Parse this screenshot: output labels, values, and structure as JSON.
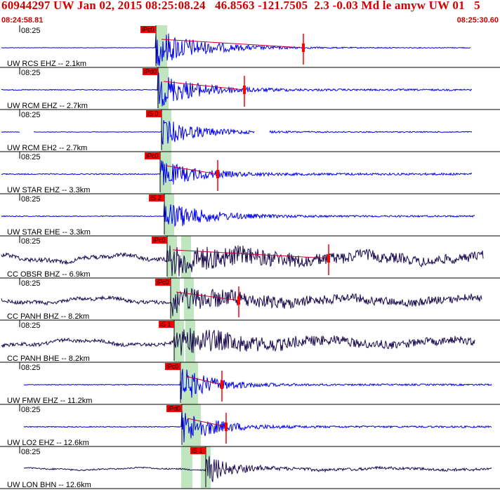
{
  "header": {
    "title": "60944297 UW Jan 02, 2015 08:25:08.24   46.8563 -121.7505  2.3 -0.03 Md le amyw UW 01   5",
    "start_time": "08:24:58.81",
    "end_time": "08:25:30.60"
  },
  "minute_label": "08:25",
  "colors": {
    "header": "#d00000",
    "blue": "#0000ee",
    "dark": "#1a0a50",
    "pick": "#ff0000",
    "window": "#bfe6bf",
    "coda": "#c0002a"
  },
  "traces": [
    {
      "label": "UW RCS EHZ -- 2.1km",
      "pick": "iPc0",
      "color": "blue",
      "p": 222,
      "amp": 28,
      "end": 670,
      "gap": null,
      "coda": 432,
      "noise": 0.6,
      "decay": 60
    },
    {
      "label": "UW RCM EHZ -- 2.7km",
      "pick": "iPd0",
      "color": "blue",
      "p": 225,
      "amp": 25,
      "end": 672,
      "gap": null,
      "coda": 348,
      "noise": 1.2,
      "decay": 55
    },
    {
      "label": "UW RCM EH2 -- 2.7km",
      "pick": "iS 0",
      "color": "blue",
      "p": 230,
      "amp": 20,
      "end": 672,
      "gap": [
        [
          28,
          48
        ],
        [
          362,
          384
        ]
      ],
      "coda": null,
      "noise": 0.8,
      "decay": 50
    },
    {
      "label": "UW STAR EHZ -- 3.3km",
      "pick": "iPc0",
      "color": "blue",
      "p": 228,
      "amp": 20,
      "end": 672,
      "gap": null,
      "coda": 310,
      "noise": 1.5,
      "decay": 50
    },
    {
      "label": "UW STAR EHE -- 3.3km",
      "pick": "iS 2",
      "color": "blue",
      "p": 234,
      "amp": 22,
      "end": 676,
      "gap": null,
      "coda": null,
      "noise": 1.2,
      "decay": 55
    },
    {
      "label": "CC OBSR BHZ -- 6.9km",
      "pick": "iPc0",
      "color": "dark",
      "p": 238,
      "amp": 18,
      "end": 688,
      "gap": null,
      "coda": 468,
      "noise": 6,
      "decay": 120
    },
    {
      "label": "CC PANH BHZ -- 8.2km",
      "pick": "iPc0",
      "color": "dark",
      "p": 243,
      "amp": 16,
      "end": 686,
      "gap": null,
      "coda": 340,
      "noise": 5,
      "decay": 100
    },
    {
      "label": "CC PANH BHE -- 8.2km",
      "pick": "iS 1",
      "color": "dark",
      "p": 248,
      "amp": 18,
      "end": 676,
      "gap": null,
      "coda": null,
      "noise": 5,
      "decay": 100
    },
    {
      "label": "UW FMW EHZ -- 11.2km",
      "pick": "iPc0",
      "color": "blue",
      "p": 257,
      "amp": 25,
      "end": 700,
      "gap": null,
      "coda": 316,
      "noise": 1.2,
      "decay": 45
    },
    {
      "label": "UW LO2 EHZ -- 12.6km",
      "pick": "iPd0",
      "color": "blue",
      "p": 259,
      "amp": 25,
      "end": 700,
      "gap": null,
      "coda": 322,
      "noise": 1.3,
      "decay": 45
    },
    {
      "label": "UW LON BHN -- 12.6km",
      "pick": "iS 1",
      "color": "dark",
      "p": 293,
      "amp": 22,
      "end": 700,
      "gap": null,
      "coda": null,
      "noise": 2,
      "decay": 30
    }
  ]
}
